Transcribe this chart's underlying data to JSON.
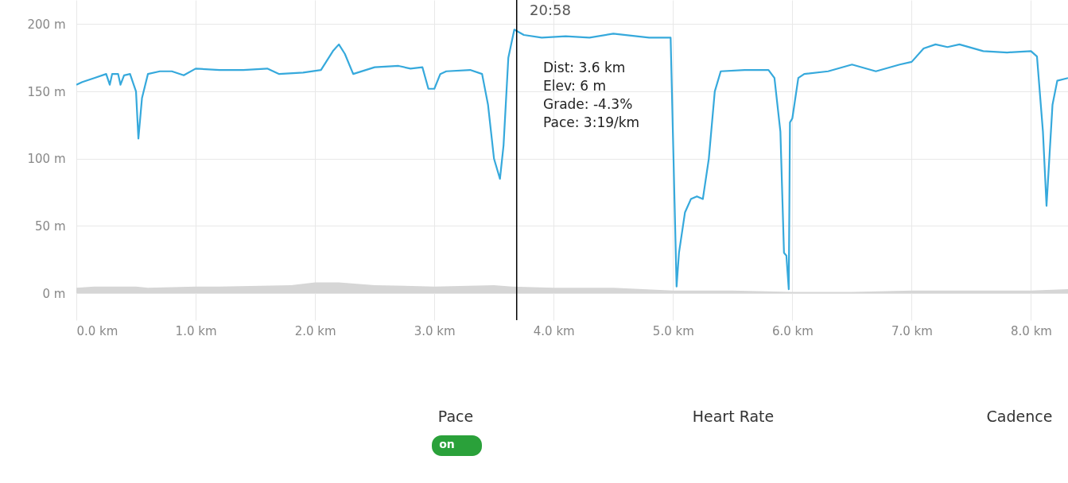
{
  "chart_data": {
    "type": "line",
    "xlim": [
      0,
      8.31
    ],
    "ylim": [
      -20,
      218
    ],
    "xticks": [
      {
        "value": 0,
        "label": "0.0 km"
      },
      {
        "value": 1,
        "label": "1.0 km"
      },
      {
        "value": 2,
        "label": "2.0 km"
      },
      {
        "value": 3,
        "label": "3.0 km"
      },
      {
        "value": 4,
        "label": "4.0 km"
      },
      {
        "value": 5,
        "label": "5.0 km"
      },
      {
        "value": 6,
        "label": "6.0 km"
      },
      {
        "value": 7,
        "label": "7.0 km"
      },
      {
        "value": 8,
        "label": "8.0 km"
      }
    ],
    "yticks": [
      {
        "value": 0,
        "label": "0 m"
      },
      {
        "value": 50,
        "label": "50 m"
      },
      {
        "value": 100,
        "label": "100 m"
      },
      {
        "value": 150,
        "label": "150 m"
      },
      {
        "value": 200,
        "label": "200 m"
      }
    ],
    "grid": true,
    "series": [
      {
        "type": "area",
        "color": "#d6d6d6",
        "x": [
          0,
          0.15,
          0.5,
          0.6,
          1.0,
          1.2,
          1.8,
          2.0,
          2.2,
          2.5,
          3.0,
          3.5,
          3.65,
          4.0,
          4.5,
          5.0,
          5.5,
          6.0,
          6.5,
          7.0,
          7.5,
          8.0,
          8.31
        ],
        "values": [
          4,
          5,
          5,
          4,
          5,
          5,
          6,
          8,
          8,
          6,
          5,
          6,
          5,
          4,
          4,
          2,
          2,
          1,
          1,
          2,
          2,
          2,
          3
        ]
      },
      {
        "color": "#36a9dc",
        "x": [
          0,
          0.05,
          0.15,
          0.25,
          0.28,
          0.3,
          0.35,
          0.37,
          0.4,
          0.45,
          0.5,
          0.52,
          0.55,
          0.6,
          0.7,
          0.8,
          0.9,
          1.0,
          1.2,
          1.4,
          1.6,
          1.7,
          1.9,
          2.05,
          2.15,
          2.2,
          2.25,
          2.32,
          2.5,
          2.7,
          2.8,
          2.9,
          2.95,
          3.0,
          3.05,
          3.1,
          3.3,
          3.4,
          3.45,
          3.5,
          3.55,
          3.58,
          3.62,
          3.67,
          3.75,
          3.9,
          4.1,
          4.3,
          4.5,
          4.8,
          4.98,
          5.03,
          5.05,
          5.1,
          5.15,
          5.2,
          5.25,
          5.3,
          5.35,
          5.4,
          5.6,
          5.8,
          5.85,
          5.9,
          5.93,
          5.95,
          5.97,
          5.98,
          6.0,
          6.05,
          6.1,
          6.3,
          6.5,
          6.7,
          6.9,
          7.0,
          7.1,
          7.2,
          7.3,
          7.4,
          7.6,
          7.8,
          8.0,
          8.05,
          8.1,
          8.13,
          8.18,
          8.22,
          8.31
        ],
        "values": [
          155,
          157,
          160,
          163,
          155,
          163,
          163,
          155,
          162,
          163,
          150,
          115,
          145,
          163,
          165,
          165,
          162,
          167,
          166,
          166,
          167,
          163,
          164,
          166,
          180,
          185,
          178,
          163,
          168,
          169,
          167,
          168,
          152,
          152,
          163,
          165,
          166,
          163,
          140,
          100,
          85,
          110,
          175,
          196,
          192,
          190,
          191,
          190,
          193,
          190,
          190,
          5,
          30,
          60,
          70,
          72,
          70,
          100,
          150,
          165,
          166,
          166,
          160,
          120,
          30,
          28,
          3,
          127,
          130,
          160,
          163,
          165,
          170,
          165,
          170,
          172,
          182,
          185,
          183,
          185,
          180,
          179,
          180,
          176,
          120,
          65,
          140,
          158,
          160
        ]
      }
    ],
    "ref_lines": [
      {
        "axis": "x",
        "value": 3.69,
        "color": "#000000"
      }
    ],
    "annotations": [
      "20:58",
      "Dist: 3.6 km",
      "Elev: 6 m",
      "Grade: -4.3%",
      "Pace: 3:19/km",
      "Pace",
      "on",
      "Heart Rate",
      "Cadence"
    ]
  }
}
